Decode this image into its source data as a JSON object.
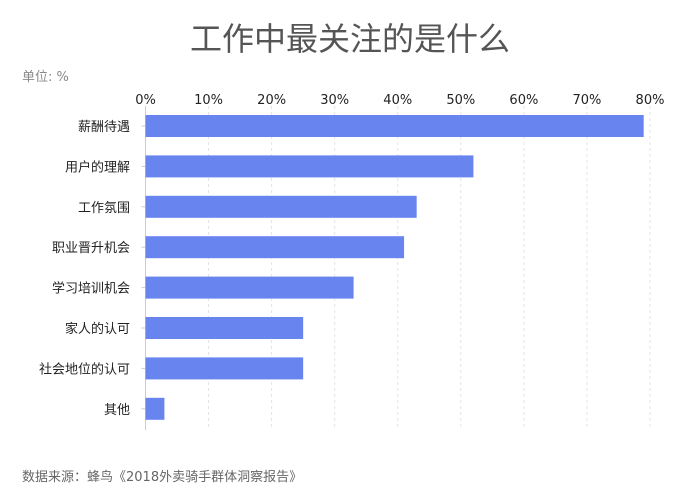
{
  "chart_data": {
    "type": "bar",
    "orientation": "horizontal",
    "title": "工作中最关注的是什么",
    "unit_label": "单位: %",
    "source": "数据来源：蜂鸟《2018外卖骑手群体洞察报告》",
    "categories": [
      "薪酬待遇",
      "用户的理解",
      "工作氛围",
      "职业晋升机会",
      "学习培训机会",
      "家人的认可",
      "社会地位的认可",
      "其他"
    ],
    "values": [
      79,
      52,
      43,
      41,
      33,
      25,
      25,
      3
    ],
    "xlim": [
      0,
      80
    ],
    "xticks": [
      "0%",
      "10%",
      "20%",
      "30%",
      "40%",
      "50%",
      "60%",
      "70%",
      "80%"
    ],
    "grid": true,
    "bar_color": "#6884ef"
  }
}
